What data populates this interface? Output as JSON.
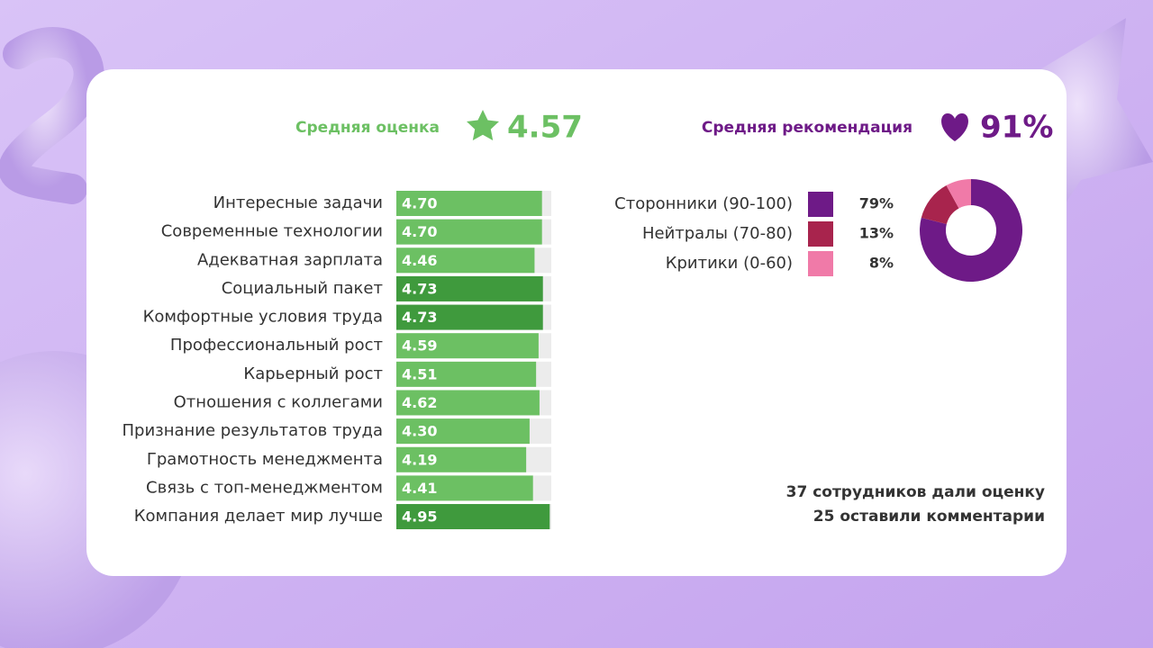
{
  "summary": {
    "rating_label": "Средняя оценка",
    "rating": 4.57,
    "recommend_label": "Средняя рекомендация",
    "recommend": "91%"
  },
  "chart_data": [
    {
      "type": "bar",
      "orientation": "horizontal",
      "categories": [
        "Интересные задачи",
        "Современные технологии",
        "Адекватная зарплата",
        "Социальный пакет",
        "Комфортные условия труда",
        "Профессиональный рост",
        "Карьерный рост",
        "Отношения с коллегами",
        "Признание результатов труда",
        "Грамотность менеджмента",
        "Связь с топ-менеджментом",
        "Компания делает мир лучше"
      ],
      "values": [
        4.7,
        4.7,
        4.46,
        4.73,
        4.73,
        4.59,
        4.51,
        4.62,
        4.3,
        4.19,
        4.41,
        4.95
      ],
      "value_labels": [
        "4.70",
        "4.70",
        "4.46",
        "4.73",
        "4.73",
        "4.59",
        "4.51",
        "4.62",
        "4.30",
        "4.19",
        "4.41",
        "4.95"
      ],
      "colors": [
        "#6cc063",
        "#6cc063",
        "#6cc063",
        "#3f9a3d",
        "#3f9a3d",
        "#6cc063",
        "#6cc063",
        "#6cc063",
        "#6cc063",
        "#6cc063",
        "#6cc063",
        "#3f9a3d"
      ],
      "xlim": [
        0,
        5
      ]
    },
    {
      "type": "pie",
      "donut": true,
      "categories": [
        "Сторонники (90-100)",
        "Нейтралы (70-80)",
        "Критики (0-60)"
      ],
      "values": [
        79,
        13,
        8
      ],
      "value_labels": [
        "79%",
        "13%",
        "8%"
      ],
      "colors": [
        "#6e1a87",
        "#a8244d",
        "#f07aa8"
      ]
    }
  ],
  "footer": [
    "37 сотрудников дали оценку",
    "25 оставили комментарии"
  ]
}
